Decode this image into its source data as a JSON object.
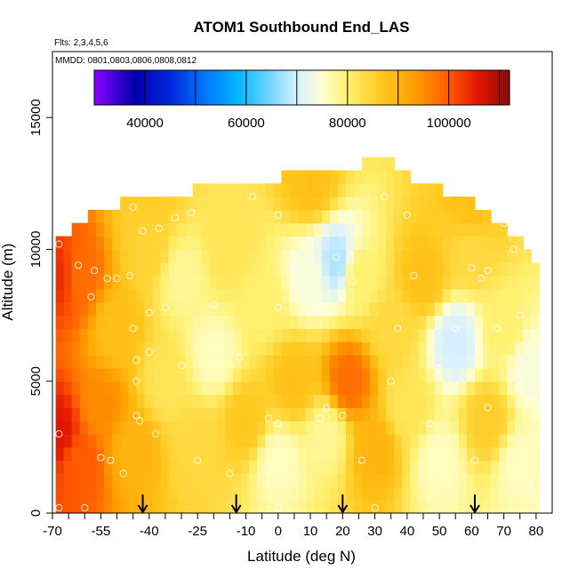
{
  "chart_data": {
    "type": "heatmap",
    "title": "ATOM1 Southbound End_LAS",
    "flights_note": "Flts: 2,3,4,5,6",
    "dates_note": "MMDD: 0801,0803,0806,0808,0812",
    "xlabel": "Latitude (deg N)",
    "ylabel": "Altitude (m)",
    "xlim": [
      -70,
      85
    ],
    "ylim": [
      0,
      17500
    ],
    "x_ticks": [
      -70,
      -55,
      -40,
      -25,
      -10,
      0,
      10,
      20,
      30,
      40,
      50,
      60,
      70,
      80
    ],
    "x_minor_ticks": [
      -65,
      -60,
      -50,
      -45,
      -35,
      -30,
      -20,
      -15,
      -5,
      5,
      15,
      25,
      35,
      45,
      55,
      65,
      75
    ],
    "y_ticks": [
      0,
      5000,
      10000,
      15000
    ],
    "colorbar": {
      "min": 30000,
      "max": 112000,
      "ticks": [
        40000,
        60000,
        80000,
        100000
      ],
      "boundaries": [
        30000,
        40000,
        50000,
        60000,
        70000,
        80000,
        90000,
        100000,
        110000
      ]
    },
    "arrows_lat": [
      -42,
      -13,
      20,
      61
    ],
    "data_extent": {
      "lat_min": -69,
      "lat_max": 80,
      "alt_min": 0,
      "alt_max": 13500
    },
    "top_profile": [
      {
        "lat": -69,
        "alt": 10500
      },
      {
        "lat": -65,
        "alt": 10800
      },
      {
        "lat": -60,
        "alt": 11100
      },
      {
        "lat": -55,
        "alt": 11500
      },
      {
        "lat": -50,
        "alt": 11800
      },
      {
        "lat": -40,
        "alt": 12000
      },
      {
        "lat": -27,
        "alt": 12500
      },
      {
        "lat": -5,
        "alt": 12500
      },
      {
        "lat": 2,
        "alt": 13000
      },
      {
        "lat": 25,
        "alt": 13000
      },
      {
        "lat": 27,
        "alt": 13500
      },
      {
        "lat": 35,
        "alt": 13000
      },
      {
        "lat": 40,
        "alt": 12500
      },
      {
        "lat": 50,
        "alt": 12000
      },
      {
        "lat": 60,
        "alt": 11500
      },
      {
        "lat": 65,
        "alt": 11000
      },
      {
        "lat": 70,
        "alt": 10500
      },
      {
        "lat": 75,
        "alt": 10000
      },
      {
        "lat": 78,
        "alt": 9500
      },
      {
        "lat": 80,
        "alt": 6000
      }
    ],
    "field_anchors": [
      {
        "lat": -68,
        "alt": 3000,
        "value": 106000
      },
      {
        "lat": -68,
        "alt": 9000,
        "value": 104000
      },
      {
        "lat": -62,
        "alt": 2000,
        "value": 100000
      },
      {
        "lat": -62,
        "alt": 9000,
        "value": 98000
      },
      {
        "lat": -55,
        "alt": 4000,
        "value": 95000
      },
      {
        "lat": -50,
        "alt": 7000,
        "value": 88000
      },
      {
        "lat": -45,
        "alt": 2500,
        "value": 90000
      },
      {
        "lat": -40,
        "alt": 10000,
        "value": 85000
      },
      {
        "lat": -35,
        "alt": 5000,
        "value": 82000
      },
      {
        "lat": -30,
        "alt": 9000,
        "value": 78000
      },
      {
        "lat": -25,
        "alt": 2500,
        "value": 84000
      },
      {
        "lat": -20,
        "alt": 6000,
        "value": 76000
      },
      {
        "lat": -15,
        "alt": 10000,
        "value": 82000
      },
      {
        "lat": -10,
        "alt": 3500,
        "value": 87000
      },
      {
        "lat": -5,
        "alt": 8000,
        "value": 80000
      },
      {
        "lat": 0,
        "alt": 2000,
        "value": 76000
      },
      {
        "lat": 5,
        "alt": 5000,
        "value": 88000
      },
      {
        "lat": 10,
        "alt": 9000,
        "value": 74000
      },
      {
        "lat": 15,
        "alt": 3000,
        "value": 78000
      },
      {
        "lat": 18,
        "alt": 9500,
        "value": 68000
      },
      {
        "lat": 22,
        "alt": 5000,
        "value": 98000
      },
      {
        "lat": 25,
        "alt": 9000,
        "value": 80000
      },
      {
        "lat": 30,
        "alt": 2500,
        "value": 90000
      },
      {
        "lat": 35,
        "alt": 7000,
        "value": 84000
      },
      {
        "lat": 40,
        "alt": 4000,
        "value": 82000
      },
      {
        "lat": 45,
        "alt": 9000,
        "value": 88000
      },
      {
        "lat": 50,
        "alt": 2000,
        "value": 76000
      },
      {
        "lat": 55,
        "alt": 6500,
        "value": 70000
      },
      {
        "lat": 60,
        "alt": 10000,
        "value": 84000
      },
      {
        "lat": 65,
        "alt": 3500,
        "value": 86000
      },
      {
        "lat": 70,
        "alt": 7000,
        "value": 80000
      },
      {
        "lat": 75,
        "alt": 2000,
        "value": 76000
      },
      {
        "lat": 78,
        "alt": 5500,
        "value": 74000
      },
      {
        "lat": 10,
        "alt": 12500,
        "value": 88000
      },
      {
        "lat": -40,
        "alt": 12000,
        "value": 86000
      },
      {
        "lat": 60,
        "alt": 11500,
        "value": 88000
      }
    ],
    "sample_points": [
      {
        "lat": -68,
        "alt": 10200
      },
      {
        "lat": -68,
        "alt": 3000
      },
      {
        "lat": -68,
        "alt": 200
      },
      {
        "lat": -62,
        "alt": 9400
      },
      {
        "lat": -58,
        "alt": 8200
      },
      {
        "lat": -57,
        "alt": 9200
      },
      {
        "lat": -55,
        "alt": 2100
      },
      {
        "lat": -53,
        "alt": 8900
      },
      {
        "lat": -52,
        "alt": 2000
      },
      {
        "lat": -50,
        "alt": 8900
      },
      {
        "lat": -48,
        "alt": 1500
      },
      {
        "lat": -46,
        "alt": 9000
      },
      {
        "lat": -45,
        "alt": 7000
      },
      {
        "lat": -44,
        "alt": 5800
      },
      {
        "lat": -44,
        "alt": 5000
      },
      {
        "lat": -44,
        "alt": 3700
      },
      {
        "lat": -43,
        "alt": 3500
      },
      {
        "lat": -45,
        "alt": 11600
      },
      {
        "lat": -42,
        "alt": 10700
      },
      {
        "lat": -40,
        "alt": 6100
      },
      {
        "lat": -40,
        "alt": 7600
      },
      {
        "lat": -38,
        "alt": 3000
      },
      {
        "lat": -37,
        "alt": 10800
      },
      {
        "lat": -35,
        "alt": 7800
      },
      {
        "lat": -32,
        "alt": 11200
      },
      {
        "lat": -30,
        "alt": 5600
      },
      {
        "lat": -27,
        "alt": 11400
      },
      {
        "lat": -25,
        "alt": 2000
      },
      {
        "lat": -20,
        "alt": 7900
      },
      {
        "lat": -15,
        "alt": 1500
      },
      {
        "lat": -12,
        "alt": 5900
      },
      {
        "lat": -8,
        "alt": 12000
      },
      {
        "lat": -3,
        "alt": 3600
      },
      {
        "lat": -3,
        "alt": 1600
      },
      {
        "lat": 0,
        "alt": 11300
      },
      {
        "lat": 0,
        "alt": 7800
      },
      {
        "lat": 0,
        "alt": 3400
      },
      {
        "lat": 0,
        "alt": 200
      },
      {
        "lat": 5,
        "alt": 9200
      },
      {
        "lat": 10,
        "alt": 10300
      },
      {
        "lat": 13,
        "alt": 3600
      },
      {
        "lat": 15,
        "alt": 4000
      },
      {
        "lat": 18,
        "alt": 9700
      },
      {
        "lat": 20,
        "alt": 3700
      },
      {
        "lat": 23,
        "alt": 8800
      },
      {
        "lat": 26,
        "alt": 2000
      },
      {
        "lat": 33,
        "alt": 12000
      },
      {
        "lat": 35,
        "alt": 5000
      },
      {
        "lat": 37,
        "alt": 7000
      },
      {
        "lat": 40,
        "alt": 11300
      },
      {
        "lat": 42,
        "alt": 9000
      },
      {
        "lat": 47,
        "alt": 3400
      },
      {
        "lat": 50,
        "alt": 5500
      },
      {
        "lat": 55,
        "alt": 7000
      },
      {
        "lat": 60,
        "alt": 9300
      },
      {
        "lat": 61,
        "alt": 2000
      },
      {
        "lat": 63,
        "alt": 8900
      },
      {
        "lat": 65,
        "alt": 4000
      },
      {
        "lat": 65,
        "alt": 9200
      },
      {
        "lat": 68,
        "alt": 7000
      },
      {
        "lat": 70,
        "alt": 11000
      },
      {
        "lat": 73,
        "alt": 10000
      },
      {
        "lat": 75,
        "alt": 7500
      },
      {
        "lat": 78,
        "alt": 1100
      },
      {
        "lat": 30,
        "alt": 200
      },
      {
        "lat": -60,
        "alt": 200
      }
    ]
  }
}
